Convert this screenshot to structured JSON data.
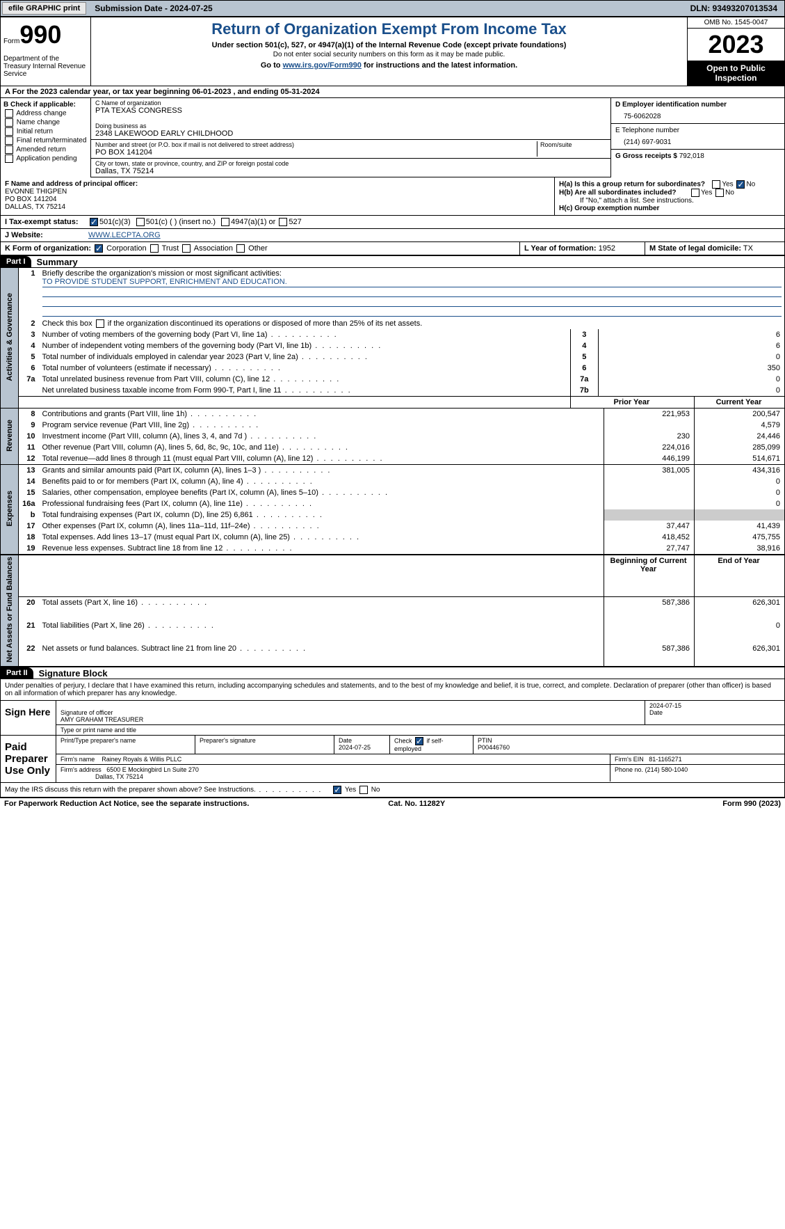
{
  "header": {
    "efile": "efile GRAPHIC print",
    "submission": "Submission Date - 2024-07-25",
    "dln": "DLN: 93493207013534"
  },
  "formTop": {
    "formWord": "Form",
    "formNum": "990",
    "dept": "Department of the Treasury\nInternal Revenue Service",
    "title": "Return of Organization Exempt From Income Tax",
    "sub1": "Under section 501(c), 527, or 4947(a)(1) of the Internal Revenue Code (except private foundations)",
    "sub2": "Do not enter social security numbers on this form as it may be made public.",
    "sub3": "Go to www.irs.gov/Form990 for instructions and the latest information.",
    "link": "www.irs.gov/Form990",
    "omb": "OMB No. 1545-0047",
    "year": "2023",
    "open": "Open to Public Inspection"
  },
  "lineA": "A For the 2023 calendar year, or tax year beginning 06-01-2023   , and ending 05-31-2024",
  "boxB": {
    "hdr": "B Check if applicable:",
    "opts": [
      "Address change",
      "Name change",
      "Initial return",
      "Final return/terminated",
      "Amended return",
      "Application pending"
    ]
  },
  "name": {
    "cLbl": "C Name of organization",
    "cVal": "PTA TEXAS CONGRESS",
    "dbaLbl": "Doing business as",
    "dbaVal": "2348 LAKEWOOD EARLY CHILDHOOD",
    "addrLbl": "Number and street (or P.O. box if mail is not delivered to street address)",
    "addrVal": "PO BOX 141204",
    "roomLbl": "Room/suite",
    "cityLbl": "City or town, state or province, country, and ZIP or foreign postal code",
    "cityVal": "Dallas, TX  75214"
  },
  "right": {
    "dLbl": "D Employer identification number",
    "dVal": "75-6062028",
    "eLbl": "E Telephone number",
    "eVal": "(214) 697-9031",
    "gLbl": "G Gross receipts $",
    "gVal": "792,018"
  },
  "fBlock": {
    "lbl": "F  Name and address of principal officer:",
    "name": "EVONNE THIGPEN",
    "addr1": "PO BOX 141204",
    "addr2": "DALLAS, TX  75214"
  },
  "hBlock": {
    "haLbl": "H(a)  Is this a group return for subordinates?",
    "hbLbl": "H(b)  Are all subordinates included?",
    "hbNote": "If \"No,\" attach a list. See instructions.",
    "hcLbl": "H(c)  Group exemption number"
  },
  "rowI": {
    "lbl": "I   Tax-exempt status:",
    "c1": "501(c)(3)",
    "c2": "501(c) (  ) (insert no.)",
    "c3": "4947(a)(1) or",
    "c4": "527"
  },
  "rowJ": {
    "lbl": "J   Website:",
    "val": "WWW.LECPTA.ORG"
  },
  "rowK": {
    "lbl": "K Form of organization:",
    "c1": "Corporation",
    "c2": "Trust",
    "c3": "Association",
    "c4": "Other",
    "lLbl": "L Year of formation:",
    "lVal": "1952",
    "mLbl": "M State of legal domicile:",
    "mVal": "TX"
  },
  "part1": {
    "num": "Part I",
    "title": "Summary"
  },
  "summary": {
    "q1": "Briefly describe the organization's mission or most significant activities:",
    "q1val": "TO PROVIDE STUDENT SUPPORT, ENRICHMENT AND EDUCATION.",
    "q2": "Check this box       if the organization discontinued its operations or disposed of more than 25% of its net assets.",
    "q3": "Number of voting members of the governing body (Part VI, line 1a)",
    "q4": "Number of independent voting members of the governing body (Part VI, line 1b)",
    "q5": "Total number of individuals employed in calendar year 2023 (Part V, line 2a)",
    "q6": "Total number of volunteers (estimate if necessary)",
    "q7a": "Total unrelated business revenue from Part VIII, column (C), line 12",
    "q7b": "Net unrelated business taxable income from Form 990-T, Part I, line 11",
    "v3": "6",
    "v4": "6",
    "v5": "0",
    "v6": "350",
    "v7a": "0",
    "v7b": "0"
  },
  "revCols": {
    "prior": "Prior Year",
    "current": "Current Year",
    "bcy": "Beginning of Current Year",
    "eoy": "End of Year"
  },
  "revenue": [
    {
      "n": "8",
      "d": "Contributions and grants (Part VIII, line 1h)",
      "p": "221,953",
      "c": "200,547"
    },
    {
      "n": "9",
      "d": "Program service revenue (Part VIII, line 2g)",
      "p": "",
      "c": "4,579"
    },
    {
      "n": "10",
      "d": "Investment income (Part VIII, column (A), lines 3, 4, and 7d )",
      "p": "230",
      "c": "24,446"
    },
    {
      "n": "11",
      "d": "Other revenue (Part VIII, column (A), lines 5, 6d, 8c, 9c, 10c, and 11e)",
      "p": "224,016",
      "c": "285,099"
    },
    {
      "n": "12",
      "d": "Total revenue—add lines 8 through 11 (must equal Part VIII, column (A), line 12)",
      "p": "446,199",
      "c": "514,671"
    }
  ],
  "expenses": [
    {
      "n": "13",
      "d": "Grants and similar amounts paid (Part IX, column (A), lines 1–3 )",
      "p": "381,005",
      "c": "434,316"
    },
    {
      "n": "14",
      "d": "Benefits paid to or for members (Part IX, column (A), line 4)",
      "p": "",
      "c": "0"
    },
    {
      "n": "15",
      "d": "Salaries, other compensation, employee benefits (Part IX, column (A), lines 5–10)",
      "p": "",
      "c": "0"
    },
    {
      "n": "16a",
      "d": "Professional fundraising fees (Part IX, column (A), line 11e)",
      "p": "",
      "c": "0"
    },
    {
      "n": "b",
      "d": "Total fundraising expenses (Part IX, column (D), line 25) 6,861",
      "p": "grey",
      "c": "grey"
    },
    {
      "n": "17",
      "d": "Other expenses (Part IX, column (A), lines 11a–11d, 11f–24e)",
      "p": "37,447",
      "c": "41,439"
    },
    {
      "n": "18",
      "d": "Total expenses. Add lines 13–17 (must equal Part IX, column (A), line 25)",
      "p": "418,452",
      "c": "475,755"
    },
    {
      "n": "19",
      "d": "Revenue less expenses. Subtract line 18 from line 12",
      "p": "27,747",
      "c": "38,916"
    }
  ],
  "netassets": [
    {
      "n": "20",
      "d": "Total assets (Part X, line 16)",
      "p": "587,386",
      "c": "626,301"
    },
    {
      "n": "21",
      "d": "Total liabilities (Part X, line 26)",
      "p": "",
      "c": "0"
    },
    {
      "n": "22",
      "d": "Net assets or fund balances. Subtract line 21 from line 20",
      "p": "587,386",
      "c": "626,301"
    }
  ],
  "vtabs": {
    "ag": "Activities & Governance",
    "rev": "Revenue",
    "exp": "Expenses",
    "na": "Net Assets or Fund Balances"
  },
  "part2": {
    "num": "Part II",
    "title": "Signature Block"
  },
  "sigText": "Under penalties of perjury, I declare that I have examined this return, including accompanying schedules and statements, and to the best of my knowledge and belief, it is true, correct, and complete. Declaration of preparer (other than officer) is based on all information of which preparer has any knowledge.",
  "signHere": {
    "lbl": "Sign Here",
    "sigOfficer": "Signature of officer",
    "officer": "AMY GRAHAM  TREASURER",
    "typeLbl": "Type or print name and title",
    "dateLbl": "Date",
    "date": "2024-07-15"
  },
  "paidPrep": {
    "lbl": "Paid Preparer Use Only",
    "c1": "Print/Type preparer's name",
    "c2": "Preparer's signature",
    "c3": "Date",
    "c3v": "2024-07-25",
    "c4": "Check        if self-employed",
    "c5": "PTIN",
    "c5v": "P00446760",
    "firmLbl": "Firm's name",
    "firmVal": "Rainey Royals & Willis PLLC",
    "einLbl": "Firm's EIN",
    "einVal": "81-1165271",
    "addrLbl": "Firm's address",
    "addrVal": "6500 E Mockingbird Ln Suite 270",
    "addrVal2": "Dallas, TX  75214",
    "phoneLbl": "Phone no.",
    "phoneVal": "(214) 580-1040"
  },
  "discuss": "May the IRS discuss this return with the preparer shown above? See Instructions.",
  "footer": {
    "l": "For Paperwork Reduction Act Notice, see the separate instructions.",
    "m": "Cat. No. 11282Y",
    "r": "Form 990 (2023)"
  },
  "colors": {
    "blue": "#1a4f8b",
    "headerBg": "#b8c4d0",
    "grey": "#cccccc"
  }
}
